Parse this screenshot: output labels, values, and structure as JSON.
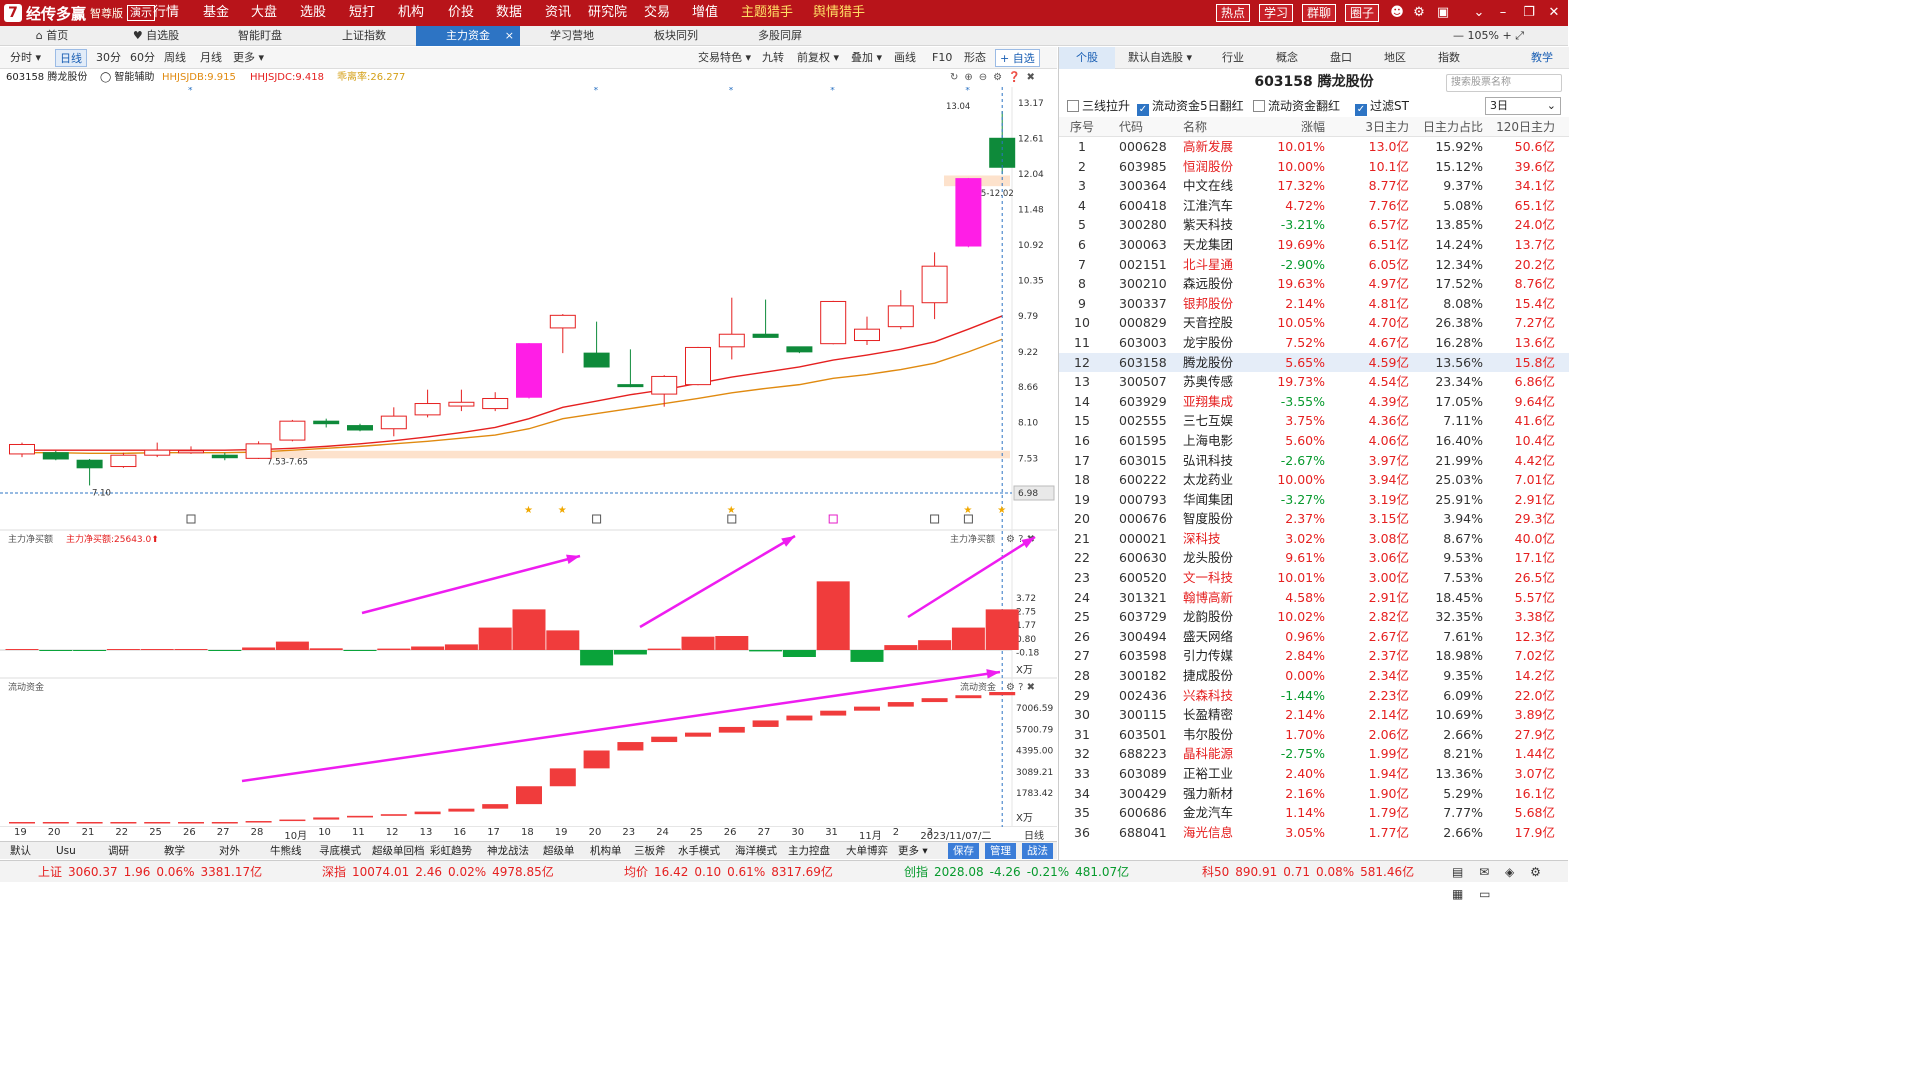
{
  "app": {
    "logo_mark": "7",
    "name": "经传多赢",
    "edition": "智尊版",
    "demo": "演示",
    "menus": [
      "行情",
      "基金",
      "大盘",
      "选股",
      "短打",
      "机构",
      "价投",
      "数据",
      "资讯",
      "研究院",
      "交易",
      "增值"
    ],
    "hunters": [
      "主题猎手",
      "舆情猎手"
    ],
    "right_buttons": [
      "热点",
      "学习",
      "群聊",
      "圈子"
    ]
  },
  "tabs": [
    "首页",
    "自选股",
    "智能盯盘",
    "上证指数",
    "主力资金",
    "学习营地",
    "板块同列",
    "多股同屏"
  ],
  "active_tab": "主力资金",
  "tab_close": "×",
  "zoom": "105%",
  "ptoolbar": {
    "left": [
      "分时",
      "日线",
      "30分",
      "60分",
      "周线",
      "月线",
      "更多"
    ],
    "selected": "日线",
    "right": [
      "交易特色",
      "九转",
      "前复权",
      "叠加",
      "画线",
      "F10",
      "形态"
    ],
    "add_watch": "+ 自选"
  },
  "stock": {
    "code_name": "603158 腾龙股份",
    "assist": "智能辅助",
    "ind1": "HHJSJDB:9.915",
    "ind2": "HHJSJDC:9.418",
    "ind3": "乖离率:26.277"
  },
  "price_panel": {
    "yticks": [
      "13.17",
      "12.61",
      "12.04",
      "11.48",
      "10.92",
      "10.35",
      "9.79",
      "9.22",
      "8.66",
      "8.10",
      "7.53",
      "6.98"
    ],
    "labels": {
      "high": "13.04",
      "zone": "11.85-12.02",
      "support": "7.53-7.65",
      "low": "7.10",
      "current": "6.98"
    }
  },
  "netbuy": {
    "title": "主力净买额",
    "value_label": "主力净买额:25643.0",
    "right_title": "主力净买额",
    "yticks": [
      "3.72",
      "2.75",
      "1.77",
      "0.80",
      "-0.18"
    ],
    "unit": "X万"
  },
  "liquid": {
    "title": "流动资金",
    "right_title": "流动资金",
    "yticks": [
      "7006.59",
      "5700.79",
      "4395.00",
      "3089.21",
      "1783.42"
    ],
    "unit": "X万"
  },
  "xaxis": {
    "labels": [
      "19",
      "20",
      "21",
      "22",
      "25",
      "26",
      "27",
      "28",
      "10月",
      "10",
      "11",
      "12",
      "13",
      "16",
      "17",
      "18",
      "19",
      "20",
      "23",
      "24",
      "25",
      "26",
      "27",
      "30",
      "31",
      "11月",
      "2",
      "3",
      "2023/11/07/二"
    ],
    "period": "日线"
  },
  "bottom_tabs": [
    "默认",
    "Usu",
    "调研",
    "教学",
    "对外",
    "牛熊线",
    "寻底模式",
    "超级单回档",
    "彩虹趋势",
    "神龙战法",
    "超级单",
    "机构单",
    "三板斧",
    "水手模式",
    "海洋模式",
    "主力控盘",
    "大单博弈",
    "更多"
  ],
  "bottom_actions": [
    "保存",
    "管理",
    "战法"
  ],
  "status": [
    {
      "name": "上证",
      "val": "3060.37",
      "chg": "1.96",
      "pct": "0.06%",
      "amt": "3381.17亿",
      "dir": "up"
    },
    {
      "name": "深指",
      "val": "10074.01",
      "chg": "2.46",
      "pct": "0.02%",
      "amt": "4978.85亿",
      "dir": "up"
    },
    {
      "name": "均价",
      "val": "16.42",
      "chg": "0.10",
      "pct": "0.61%",
      "amt": "8317.69亿",
      "dir": "up"
    },
    {
      "name": "创指",
      "val": "2028.08",
      "chg": "-4.26",
      "pct": "-0.21%",
      "amt": "481.07亿",
      "dir": "down"
    },
    {
      "name": "科50",
      "val": "890.91",
      "chg": "0.71",
      "pct": "0.08%",
      "amt": "581.46亿",
      "dir": "up"
    }
  ],
  "right": {
    "tabs": [
      "个股",
      "默认自选股",
      "行业",
      "概念",
      "盘口",
      "地区",
      "指数"
    ],
    "teach": "教学",
    "title": "603158  腾龙股份",
    "search_placeholder": "搜索股票名称",
    "filters": [
      {
        "label": "三线拉升",
        "on": false
      },
      {
        "label": "流动资金5日翻红",
        "on": true
      },
      {
        "label": "流动资金翻红",
        "on": false
      },
      {
        "label": "过滤ST",
        "on": true
      }
    ],
    "period": "3日",
    "headers": [
      "序号",
      "代码",
      "名称",
      "涨幅",
      "3日主力",
      "日主力占比",
      "120日主力"
    ],
    "rows": [
      [
        "1",
        "000628",
        "高新发展",
        "10.01%",
        "13.0亿",
        "15.92%",
        "50.6亿"
      ],
      [
        "2",
        "603985",
        "恒润股份",
        "10.00%",
        "10.1亿",
        "15.12%",
        "39.6亿"
      ],
      [
        "3",
        "300364",
        "中文在线",
        "17.32%",
        "8.77亿",
        "9.37%",
        "34.1亿"
      ],
      [
        "4",
        "600418",
        "江淮汽车",
        "4.72%",
        "7.76亿",
        "5.08%",
        "65.1亿"
      ],
      [
        "5",
        "300280",
        "紫天科技",
        "-3.21%",
        "6.57亿",
        "13.85%",
        "24.0亿"
      ],
      [
        "6",
        "300063",
        "天龙集团",
        "19.69%",
        "6.51亿",
        "14.24%",
        "13.7亿"
      ],
      [
        "7",
        "002151",
        "北斗星通",
        "-2.90%",
        "6.05亿",
        "12.34%",
        "20.2亿"
      ],
      [
        "8",
        "300210",
        "森远股份",
        "19.63%",
        "4.97亿",
        "17.52%",
        "8.76亿"
      ],
      [
        "9",
        "300337",
        "银邦股份",
        "2.14%",
        "4.81亿",
        "8.08%",
        "15.4亿"
      ],
      [
        "10",
        "000829",
        "天音控股",
        "10.05%",
        "4.70亿",
        "26.38%",
        "7.27亿"
      ],
      [
        "11",
        "603003",
        "龙宇股份",
        "7.52%",
        "4.67亿",
        "16.28%",
        "13.6亿"
      ],
      [
        "12",
        "603158",
        "腾龙股份",
        "5.65%",
        "4.59亿",
        "13.56%",
        "15.8亿"
      ],
      [
        "13",
        "300507",
        "苏奥传感",
        "19.73%",
        "4.54亿",
        "23.34%",
        "6.86亿"
      ],
      [
        "14",
        "603929",
        "亚翔集成",
        "-3.55%",
        "4.39亿",
        "17.05%",
        "9.64亿"
      ],
      [
        "15",
        "002555",
        "三七互娱",
        "3.75%",
        "4.36亿",
        "7.11%",
        "41.6亿"
      ],
      [
        "16",
        "601595",
        "上海电影",
        "5.60%",
        "4.06亿",
        "16.40%",
        "10.4亿"
      ],
      [
        "17",
        "603015",
        "弘讯科技",
        "-2.67%",
        "3.97亿",
        "21.99%",
        "4.42亿"
      ],
      [
        "18",
        "600222",
        "太龙药业",
        "10.00%",
        "3.94亿",
        "25.03%",
        "7.01亿"
      ],
      [
        "19",
        "000793",
        "华闻集团",
        "-3.27%",
        "3.19亿",
        "25.91%",
        "2.91亿"
      ],
      [
        "20",
        "000676",
        "智度股份",
        "2.37%",
        "3.15亿",
        "3.94%",
        "29.3亿"
      ],
      [
        "21",
        "000021",
        "深科技",
        "3.02%",
        "3.08亿",
        "8.67%",
        "40.0亿"
      ],
      [
        "22",
        "600630",
        "龙头股份",
        "9.61%",
        "3.06亿",
        "9.53%",
        "17.1亿"
      ],
      [
        "23",
        "600520",
        "文一科技",
        "10.01%",
        "3.00亿",
        "7.53%",
        "26.5亿"
      ],
      [
        "24",
        "301321",
        "翰博高新",
        "4.58%",
        "2.91亿",
        "18.45%",
        "5.57亿"
      ],
      [
        "25",
        "603729",
        "龙韵股份",
        "10.02%",
        "2.82亿",
        "32.35%",
        "3.38亿"
      ],
      [
        "26",
        "300494",
        "盛天网络",
        "0.96%",
        "2.67亿",
        "7.61%",
        "12.3亿"
      ],
      [
        "27",
        "603598",
        "引力传媒",
        "2.84%",
        "2.37亿",
        "18.98%",
        "7.02亿"
      ],
      [
        "28",
        "300182",
        "捷成股份",
        "0.00%",
        "2.34亿",
        "9.35%",
        "14.2亿"
      ],
      [
        "29",
        "002436",
        "兴森科技",
        "-1.44%",
        "2.23亿",
        "6.09%",
        "22.0亿"
      ],
      [
        "30",
        "300115",
        "长盈精密",
        "2.14%",
        "2.14亿",
        "10.69%",
        "3.89亿"
      ],
      [
        "31",
        "603501",
        "韦尔股份",
        "1.70%",
        "2.06亿",
        "2.66%",
        "27.9亿"
      ],
      [
        "32",
        "688223",
        "晶科能源",
        "-2.75%",
        "1.99亿",
        "8.21%",
        "1.44亿"
      ],
      [
        "33",
        "603089",
        "正裕工业",
        "2.40%",
        "1.94亿",
        "13.36%",
        "3.07亿"
      ],
      [
        "34",
        "300429",
        "强力新材",
        "2.16%",
        "1.90亿",
        "5.29%",
        "16.1亿"
      ],
      [
        "35",
        "600686",
        "金龙汽车",
        "1.14%",
        "1.79亿",
        "7.77%",
        "5.68亿"
      ],
      [
        "36",
        "688041",
        "海光信息",
        "3.05%",
        "1.77亿",
        "2.66%",
        "17.9亿"
      ]
    ],
    "red_names": [
      "高新发展",
      "恒润股份",
      "北斗星通",
      "银邦股份",
      "亚翔集成",
      "深科技",
      "文一科技",
      "翰博高新",
      "兴森科技",
      "晶科能源",
      "海光信息"
    ],
    "highlight_code": "603158"
  },
  "chart_data": {
    "type": "candlestick",
    "candles": [
      {
        "o": 7.6,
        "c": 7.75,
        "h": 7.78,
        "l": 7.55
      },
      {
        "o": 7.62,
        "c": 7.52,
        "h": 7.65,
        "l": 7.5
      },
      {
        "o": 7.5,
        "c": 7.38,
        "h": 7.52,
        "l": 7.1
      },
      {
        "o": 7.4,
        "c": 7.58,
        "h": 7.62,
        "l": 7.38
      },
      {
        "o": 7.58,
        "c": 7.66,
        "h": 7.78,
        "l": 7.55
      },
      {
        "o": 7.62,
        "c": 7.65,
        "h": 7.72,
        "l": 7.6
      },
      {
        "o": 7.58,
        "c": 7.54,
        "h": 7.62,
        "l": 7.5
      },
      {
        "o": 7.53,
        "c": 7.76,
        "h": 7.8,
        "l": 7.52
      },
      {
        "o": 7.82,
        "c": 8.12,
        "h": 8.14,
        "l": 7.8
      },
      {
        "o": 8.12,
        "c": 8.08,
        "h": 8.16,
        "l": 8.02
      },
      {
        "o": 8.05,
        "c": 7.98,
        "h": 8.08,
        "l": 7.96
      },
      {
        "o": 8.0,
        "c": 8.2,
        "h": 8.34,
        "l": 7.88
      },
      {
        "o": 8.22,
        "c": 8.4,
        "h": 8.62,
        "l": 8.18
      },
      {
        "o": 8.36,
        "c": 8.42,
        "h": 8.62,
        "l": 8.28
      },
      {
        "o": 8.32,
        "c": 8.48,
        "h": 8.58,
        "l": 8.28
      },
      {
        "o": 8.5,
        "c": 9.35,
        "h": 9.36,
        "l": 8.48
      },
      {
        "o": 9.6,
        "c": 9.8,
        "h": 9.82,
        "l": 9.2
      },
      {
        "o": 9.2,
        "c": 8.98,
        "h": 9.7,
        "l": 8.98
      },
      {
        "o": 8.7,
        "c": 8.68,
        "h": 9.26,
        "l": 8.66
      },
      {
        "o": 8.55,
        "c": 8.83,
        "h": 8.85,
        "l": 8.35
      },
      {
        "o": 8.7,
        "c": 9.29,
        "h": 9.3,
        "l": 8.69
      },
      {
        "o": 9.3,
        "c": 9.5,
        "h": 10.08,
        "l": 9.1
      },
      {
        "o": 9.5,
        "c": 9.45,
        "h": 10.05,
        "l": 9.45
      },
      {
        "o": 9.3,
        "c": 9.22,
        "h": 9.3,
        "l": 9.2
      },
      {
        "o": 9.35,
        "c": 10.02,
        "h": 10.03,
        "l": 9.34
      },
      {
        "o": 9.4,
        "c": 9.58,
        "h": 9.78,
        "l": 9.33
      },
      {
        "o": 9.62,
        "c": 9.95,
        "h": 10.2,
        "l": 9.58
      },
      {
        "o": 10.0,
        "c": 10.58,
        "h": 10.8,
        "l": 9.74
      },
      {
        "o": 10.9,
        "c": 11.97,
        "h": 11.98,
        "l": 10.88
      },
      {
        "o": 12.61,
        "c": 12.15,
        "h": 13.04,
        "l": 12.04
      }
    ],
    "netbuy": [
      0.05,
      -0.02,
      -0.05,
      0.03,
      0.06,
      0.04,
      -0.03,
      0.18,
      0.6,
      0.12,
      -0.06,
      0.1,
      0.25,
      0.4,
      1.6,
      2.9,
      1.4,
      -1.1,
      -0.32,
      0.1,
      0.95,
      1.0,
      -0.1,
      -0.5,
      4.9,
      -0.85,
      0.35,
      0.7,
      1.6,
      2.9
    ],
    "liquid": [
      0,
      0,
      0,
      0,
      0,
      0,
      0,
      60,
      150,
      280,
      380,
      480,
      640,
      820,
      1100,
      2200,
      3300,
      4400,
      4920,
      5250,
      5500,
      5850,
      6250,
      6550,
      6850,
      7100,
      7380,
      7620,
      7800,
      8000
    ],
    "ma1": [
      7.62,
      7.62,
      7.61,
      7.61,
      7.62,
      7.62,
      7.62,
      7.63,
      7.66,
      7.69,
      7.72,
      7.76,
      7.8,
      7.85,
      7.9,
      8.0,
      8.16,
      8.24,
      8.32,
      8.4,
      8.48,
      8.57,
      8.64,
      8.7,
      8.8,
      8.86,
      8.94,
      9.04,
      9.22,
      9.42
    ],
    "ma2": [
      7.66,
      7.66,
      7.66,
      7.66,
      7.66,
      7.66,
      7.66,
      7.67,
      7.69,
      7.72,
      7.76,
      7.81,
      7.87,
      7.94,
      8.02,
      8.16,
      8.34,
      8.44,
      8.54,
      8.62,
      8.72,
      8.82,
      8.9,
      8.98,
      9.09,
      9.17,
      9.26,
      9.38,
      9.58,
      9.79
    ]
  }
}
